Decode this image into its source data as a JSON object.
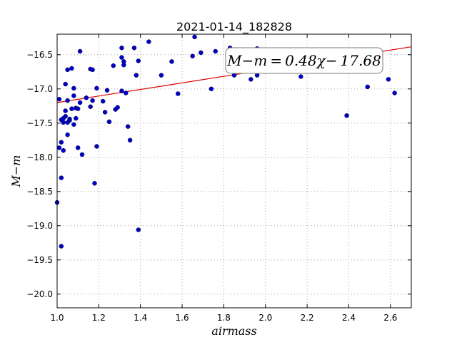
{
  "chart_data": {
    "type": "scatter",
    "title": "2021-01-14_182828",
    "xlabel": "airmass",
    "ylabel": "M−m",
    "xlim": [
      1.0,
      2.7
    ],
    "ylim": [
      -20.2,
      -16.2
    ],
    "y_inverted": true,
    "grid": true,
    "x_ticks": [
      "1.0",
      "1.2",
      "1.4",
      "1.6",
      "1.8",
      "2.0",
      "2.2",
      "2.4",
      "2.6"
    ],
    "y_ticks": [
      "−16.5",
      "−17.0",
      "−17.5",
      "−18.0",
      "−18.5",
      "−19.0",
      "−19.5",
      "−20.0"
    ],
    "annotation": "M−m = 0.48χ− 17.68",
    "fit": {
      "slope": 0.48,
      "intercept": -17.68
    },
    "colors": {
      "points": "#0000cc",
      "fit_line": "#dd0000"
    },
    "points": [
      [
        1.0,
        -18.66
      ],
      [
        1.01,
        -17.15
      ],
      [
        1.01,
        -17.86
      ],
      [
        1.02,
        -17.78
      ],
      [
        1.02,
        -18.3
      ],
      [
        1.02,
        -19.3
      ],
      [
        1.02,
        -17.45
      ],
      [
        1.03,
        -17.49
      ],
      [
        1.03,
        -17.43
      ],
      [
        1.03,
        -17.9
      ],
      [
        1.04,
        -17.4
      ],
      [
        1.04,
        -17.32
      ],
      [
        1.04,
        -16.93
      ],
      [
        1.05,
        -16.72
      ],
      [
        1.05,
        -17.49
      ],
      [
        1.05,
        -17.17
      ],
      [
        1.05,
        -17.67
      ],
      [
        1.06,
        -17.44
      ],
      [
        1.06,
        -17.46
      ],
      [
        1.07,
        -16.7
      ],
      [
        1.07,
        -17.29
      ],
      [
        1.08,
        -16.99
      ],
      [
        1.08,
        -17.1
      ],
      [
        1.08,
        -17.52
      ],
      [
        1.09,
        -17.43
      ],
      [
        1.09,
        -17.28
      ],
      [
        1.1,
        -17.86
      ],
      [
        1.1,
        -17.29
      ],
      [
        1.11,
        -16.45
      ],
      [
        1.11,
        -17.2
      ],
      [
        1.12,
        -17.96
      ],
      [
        1.14,
        -17.13
      ],
      [
        1.16,
        -16.71
      ],
      [
        1.16,
        -17.26
      ],
      [
        1.17,
        -16.72
      ],
      [
        1.17,
        -17.17
      ],
      [
        1.18,
        -18.38
      ],
      [
        1.19,
        -17.84
      ],
      [
        1.19,
        -16.99
      ],
      [
        1.22,
        -17.18
      ],
      [
        1.23,
        -17.34
      ],
      [
        1.24,
        -17.02
      ],
      [
        1.25,
        -17.48
      ],
      [
        1.27,
        -16.66
      ],
      [
        1.28,
        -17.3
      ],
      [
        1.29,
        -17.27
      ],
      [
        1.31,
        -16.4
      ],
      [
        1.31,
        -16.54
      ],
      [
        1.31,
        -17.03
      ],
      [
        1.32,
        -16.65
      ],
      [
        1.32,
        -16.6
      ],
      [
        1.33,
        -17.06
      ],
      [
        1.34,
        -17.55
      ],
      [
        1.35,
        -17.75
      ],
      [
        1.37,
        -16.4
      ],
      [
        1.38,
        -16.8
      ],
      [
        1.39,
        -16.59
      ],
      [
        1.39,
        -19.06
      ],
      [
        1.44,
        -16.31
      ],
      [
        1.5,
        -16.8
      ],
      [
        1.55,
        -16.6
      ],
      [
        1.58,
        -17.07
      ],
      [
        1.65,
        -16.52
      ],
      [
        1.66,
        -16.24
      ],
      [
        1.69,
        -16.47
      ],
      [
        1.74,
        -17.0
      ],
      [
        1.76,
        -16.45
      ],
      [
        1.83,
        -16.4
      ],
      [
        1.85,
        -16.8
      ],
      [
        1.93,
        -16.86
      ],
      [
        1.96,
        -16.41
      ],
      [
        1.96,
        -16.8
      ],
      [
        2.17,
        -16.82
      ],
      [
        2.39,
        -17.39
      ],
      [
        2.49,
        -16.97
      ],
      [
        2.59,
        -16.86
      ],
      [
        2.62,
        -17.06
      ]
    ]
  }
}
